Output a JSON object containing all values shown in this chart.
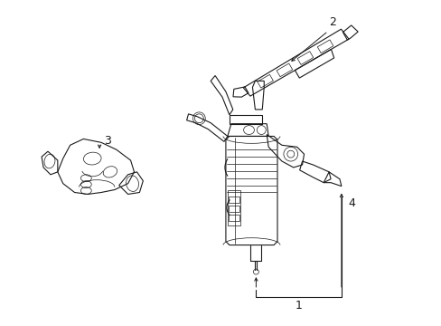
{
  "bg_color": "#ffffff",
  "line_color": "#1a1a1a",
  "figsize": [
    4.89,
    3.6
  ],
  "dpi": 100,
  "label_fontsize": 9,
  "lw": 0.8,
  "tlw": 0.5
}
